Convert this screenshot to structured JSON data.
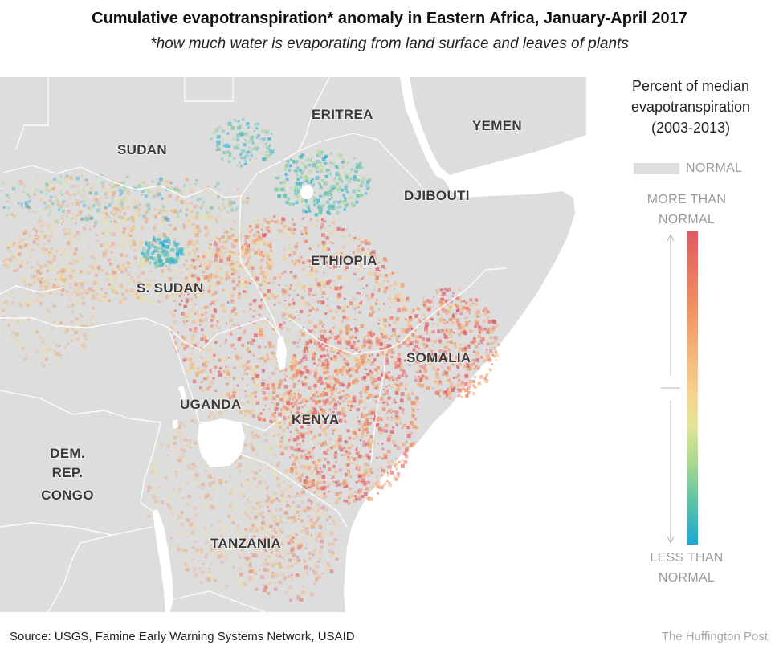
{
  "title": "Cumulative evapotranspiration* anomaly in Eastern Africa, January-April 2017",
  "subtitle": "*how much water is evaporating from land surface and leaves of plants",
  "map": {
    "land_color": "#dddddd",
    "water_color": "#ffffff",
    "border_color": "#ffffff",
    "countries": [
      {
        "key": "sudan",
        "label": "SUDAN"
      },
      {
        "key": "eritrea",
        "label": "ERITREA"
      },
      {
        "key": "yemen",
        "label": "YEMEN"
      },
      {
        "key": "djibouti",
        "label": "DJIBOUTI"
      },
      {
        "key": "ethiopia",
        "label": "ETHIOPIA"
      },
      {
        "key": "s_sudan",
        "label": "S. SUDAN"
      },
      {
        "key": "somalia",
        "label": "SOMALIA"
      },
      {
        "key": "uganda",
        "label": "UGANDA"
      },
      {
        "key": "kenya",
        "label": "KENYA"
      },
      {
        "key": "drc",
        "label_lines": [
          "DEM.",
          "REP.",
          "CONGO"
        ]
      },
      {
        "key": "tanzania",
        "label": "TANZANIA"
      }
    ]
  },
  "legend": {
    "title_lines": [
      "Percent of median",
      "evapotranspiration",
      "(2003-2013)"
    ],
    "normal_label": "NORMAL",
    "more_lines": [
      "MORE THAN",
      "NORMAL"
    ],
    "less_lines": [
      "LESS THAN",
      "NORMAL"
    ],
    "normal_color": "#dedede",
    "ramp_colors": [
      "#e05a63",
      "#ee8a60",
      "#f4b37a",
      "#f6d48f",
      "#e3e599",
      "#a9d98f",
      "#5cc3a4",
      "#1ca8d4"
    ]
  },
  "source": "Source: USGS, Famine Early Warning Systems Network, USAID",
  "credit": "The Huffington Post"
}
